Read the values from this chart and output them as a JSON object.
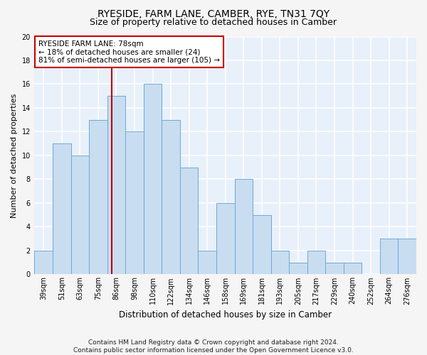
{
  "title": "RYESIDE, FARM LANE, CAMBER, RYE, TN31 7QY",
  "subtitle": "Size of property relative to detached houses in Camber",
  "xlabel": "Distribution of detached houses by size in Camber",
  "ylabel": "Number of detached properties",
  "bar_labels": [
    "39sqm",
    "51sqm",
    "63sqm",
    "75sqm",
    "86sqm",
    "98sqm",
    "110sqm",
    "122sqm",
    "134sqm",
    "146sqm",
    "158sqm",
    "169sqm",
    "181sqm",
    "193sqm",
    "205sqm",
    "217sqm",
    "229sqm",
    "240sqm",
    "252sqm",
    "264sqm",
    "276sqm"
  ],
  "bar_values": [
    2,
    11,
    10,
    13,
    15,
    12,
    16,
    13,
    9,
    2,
    6,
    8,
    5,
    2,
    1,
    2,
    1,
    1,
    0,
    3,
    3
  ],
  "bar_color": "#c9ddf0",
  "bar_edge_color": "#6aaad4",
  "background_color": "#e8f0fa",
  "grid_color": "#ffffff",
  "vline_x": 3.75,
  "vline_color": "#bb0000",
  "annotation_text": "RYESIDE FARM LANE: 78sqm\n← 18% of detached houses are smaller (24)\n81% of semi-detached houses are larger (105) →",
  "annotation_box_facecolor": "#ffffff",
  "annotation_box_edgecolor": "#cc0000",
  "ylim": [
    0,
    20
  ],
  "yticks": [
    0,
    2,
    4,
    6,
    8,
    10,
    12,
    14,
    16,
    18,
    20
  ],
  "footer": "Contains HM Land Registry data © Crown copyright and database right 2024.\nContains public sector information licensed under the Open Government Licence v3.0.",
  "title_fontsize": 10,
  "subtitle_fontsize": 9,
  "xlabel_fontsize": 8.5,
  "ylabel_fontsize": 8,
  "tick_fontsize": 7,
  "annot_fontsize": 7.5,
  "footer_fontsize": 6.5
}
